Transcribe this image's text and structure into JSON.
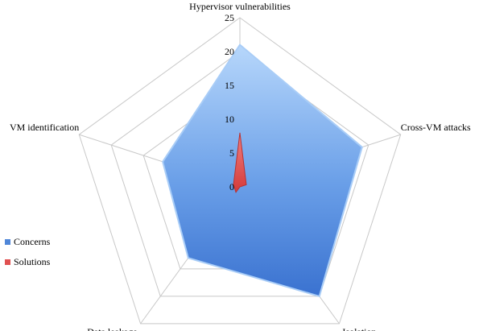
{
  "chart_data": {
    "type": "radar",
    "title": "",
    "categories": [
      "Hypervisor vulnerabilities",
      "Cross-VM attacks",
      "Isolation",
      "Data leakage",
      "VM identification"
    ],
    "series": [
      {
        "name": "Concerns",
        "values": [
          21,
          19,
          20,
          13,
          12
        ],
        "color": "#4f86d8"
      },
      {
        "name": "Solutions",
        "values": [
          8,
          1,
          0,
          1,
          1
        ],
        "color": "#e05050"
      }
    ],
    "rlim": [
      0,
      25
    ],
    "ticks": [
      "0",
      "5",
      "10",
      "15",
      "20",
      "25"
    ],
    "grid": true,
    "legend_position": "left"
  }
}
